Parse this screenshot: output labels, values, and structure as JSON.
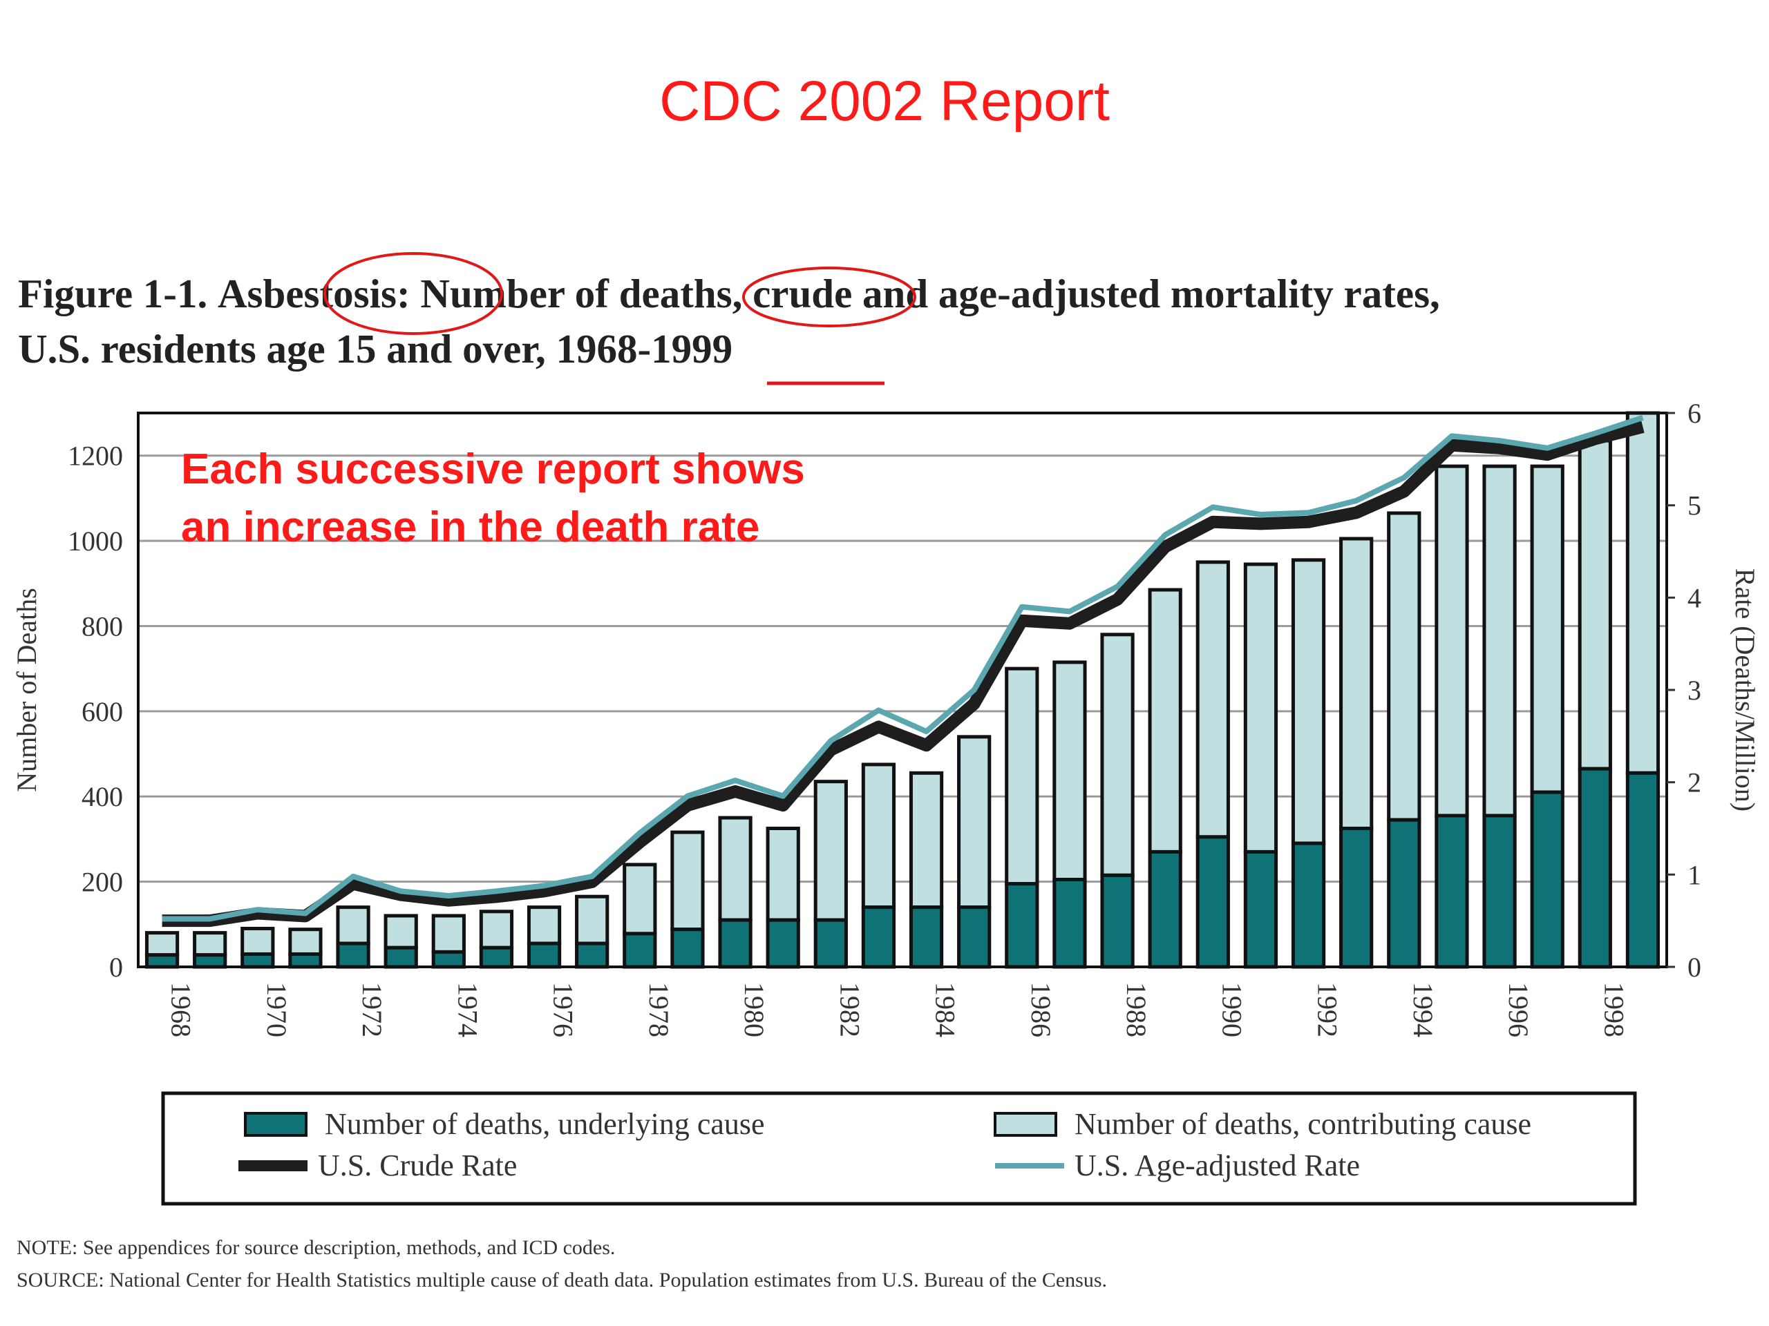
{
  "slide": {
    "title": "CDC 2002 Report",
    "accent_color": "#ff1a1a"
  },
  "figure": {
    "title_prefix": "Figure 1-1.",
    "title_circled_1": "Asbestosis:",
    "title_mid": "Number of",
    "title_circled_2": "deaths,",
    "title_rest": "crude and age-adjusted mortality rates,",
    "title_line2_prefix": "U.S. residents age 15 and over, 1968-",
    "title_line2_underlined": "1999"
  },
  "annotation": {
    "line1": "Each successive report shows",
    "line2": "an increase in the death rate"
  },
  "notes": {
    "note": "NOTE:  See appendices for source description, methods, and ICD codes.",
    "source": "SOURCE:  National Center for Health Statistics multiple cause of death data.  Population estimates from U.S. Bureau of the Census."
  },
  "chart_data": {
    "type": "bar",
    "stacked": true,
    "title": "Asbestosis: Number of deaths, crude and age-adjusted mortality rates, U.S. residents age 15 and over, 1968-1999",
    "xlabel": "",
    "ylabel": "Number of Deaths",
    "y2label": "Rate (Deaths/Million)",
    "ylim": [
      0,
      1300
    ],
    "y2lim": [
      0,
      6
    ],
    "yticks": [
      0,
      200,
      400,
      600,
      800,
      1000,
      1200
    ],
    "y2ticks": [
      0,
      1,
      2,
      3,
      4,
      5,
      6
    ],
    "grid": true,
    "categories": [
      1968,
      1969,
      1970,
      1971,
      1972,
      1973,
      1974,
      1975,
      1976,
      1977,
      1978,
      1979,
      1980,
      1981,
      1982,
      1983,
      1984,
      1985,
      1986,
      1987,
      1988,
      1989,
      1990,
      1991,
      1992,
      1993,
      1994,
      1995,
      1996,
      1997,
      1998,
      1999
    ],
    "xtick_labels": [
      "1968",
      "1970",
      "1972",
      "1974",
      "1976",
      "1978",
      "1980",
      "1982",
      "1984",
      "1986",
      "1988",
      "1990",
      "1992",
      "1994",
      "1996",
      "1998"
    ],
    "series": [
      {
        "name": "Number of deaths, underlying cause",
        "kind": "bar",
        "color": "#0e7277",
        "values": [
          28,
          28,
          30,
          30,
          55,
          45,
          35,
          45,
          55,
          55,
          78,
          88,
          110,
          110,
          110,
          140,
          140,
          140,
          195,
          205,
          215,
          270,
          305,
          270,
          290,
          325,
          345,
          355,
          355,
          410,
          465,
          455
        ]
      },
      {
        "name": "Number of deaths, contributing cause",
        "kind": "bar",
        "color": "#bfdfe0",
        "values": [
          52,
          52,
          60,
          58,
          85,
          75,
          85,
          85,
          85,
          110,
          162,
          228,
          240,
          215,
          325,
          335,
          315,
          400,
          505,
          510,
          565,
          615,
          645,
          675,
          665,
          680,
          720,
          820,
          820,
          765,
          770,
          845
        ]
      },
      {
        "name": "U.S. Crude Rate",
        "kind": "line",
        "axis": "y2",
        "color": "#1e1e1e",
        "values": [
          0.5,
          0.5,
          0.58,
          0.55,
          0.9,
          0.78,
          0.72,
          0.76,
          0.82,
          0.92,
          1.35,
          1.75,
          1.9,
          1.75,
          2.35,
          2.6,
          2.4,
          2.85,
          3.75,
          3.72,
          3.98,
          4.55,
          4.82,
          4.8,
          4.82,
          4.92,
          5.15,
          5.65,
          5.62,
          5.55,
          5.72,
          5.85
        ]
      },
      {
        "name": "U.S. Age-adjusted Rate",
        "kind": "line",
        "axis": "y2",
        "color": "#5aa7b0",
        "values": [
          0.52,
          0.52,
          0.62,
          0.58,
          0.98,
          0.82,
          0.77,
          0.82,
          0.88,
          0.98,
          1.45,
          1.85,
          2.02,
          1.85,
          2.45,
          2.78,
          2.55,
          3.0,
          3.9,
          3.85,
          4.12,
          4.68,
          4.98,
          4.9,
          4.92,
          5.05,
          5.3,
          5.75,
          5.7,
          5.62,
          5.78,
          5.95
        ]
      }
    ],
    "legend": "bottom"
  }
}
